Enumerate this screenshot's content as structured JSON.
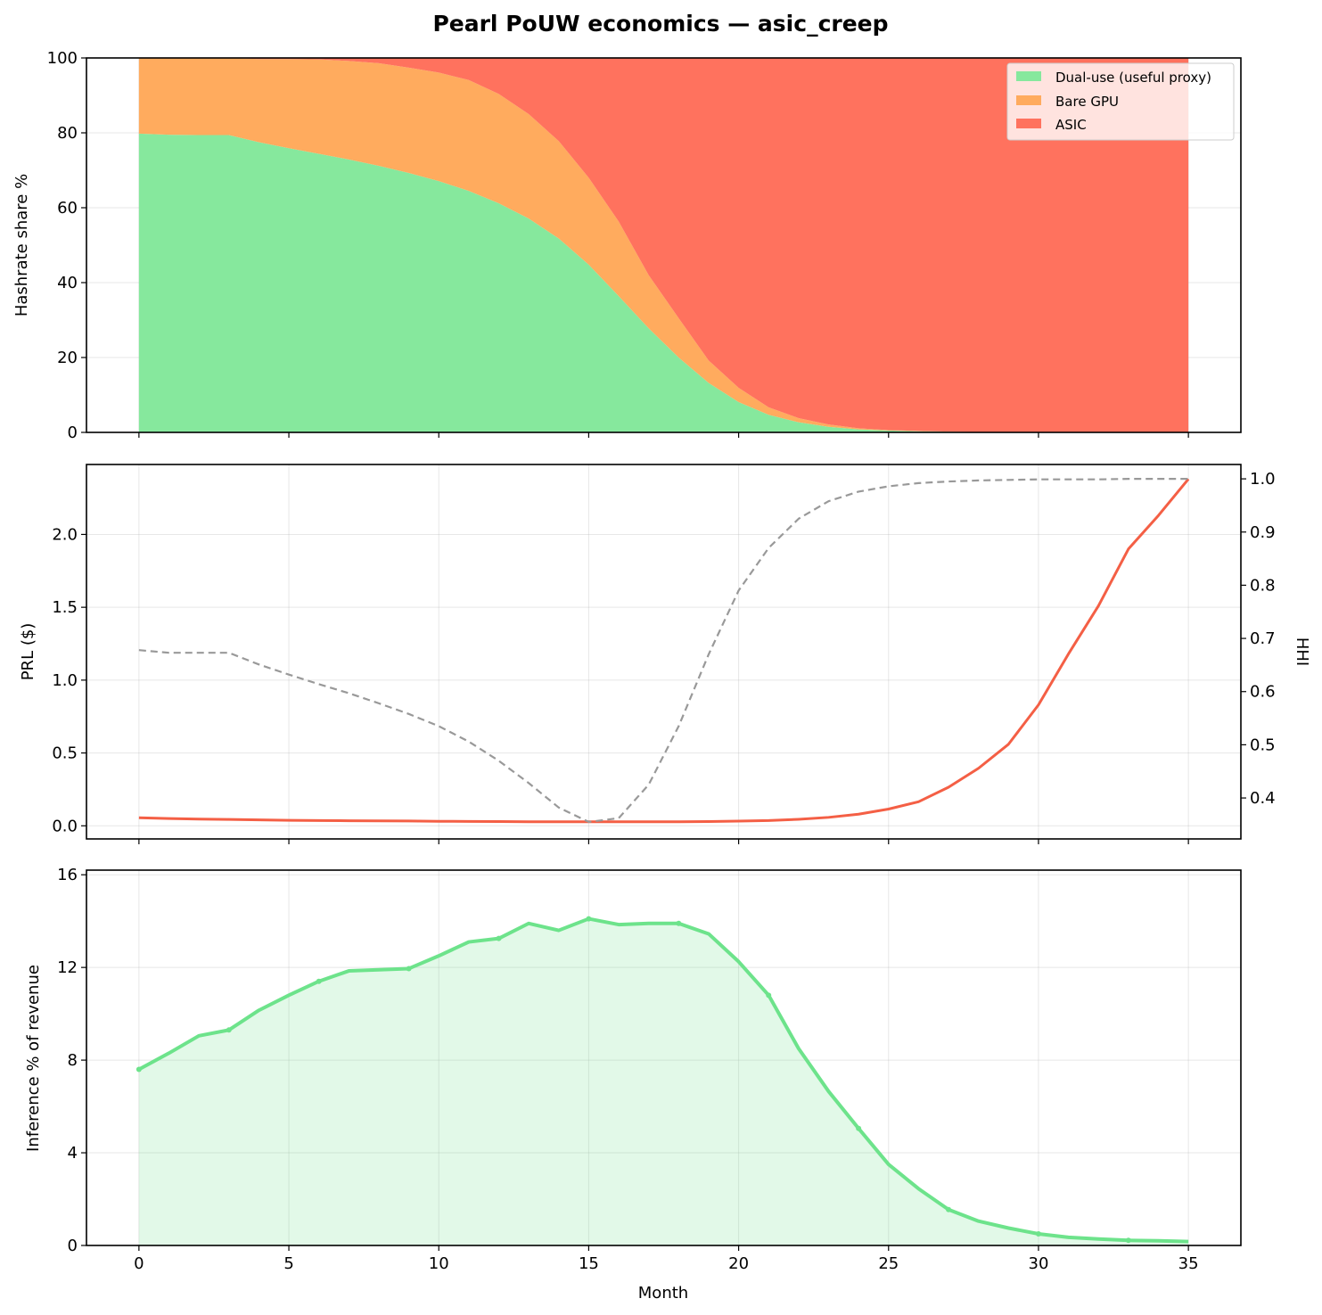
{
  "title": "Pearl PoUW economics — asic_creep",
  "chart_data": [
    {
      "type": "area",
      "stacked": true,
      "ylabel": "Hashrate share %",
      "xlabel": "",
      "xlim": [
        -1.75,
        36.75
      ],
      "ylim": [
        0,
        100
      ],
      "xticks": [
        0,
        5,
        10,
        15,
        20,
        25,
        30,
        35
      ],
      "yticks": [
        0,
        20,
        40,
        60,
        80,
        100
      ],
      "grid": true,
      "legend_position": "top-right",
      "x": [
        0,
        1,
        2,
        3,
        4,
        5,
        6,
        7,
        8,
        9,
        10,
        11,
        12,
        13,
        14,
        15,
        16,
        17,
        18,
        19,
        20,
        21,
        22,
        23,
        24,
        25,
        26,
        27,
        28,
        29,
        30,
        31,
        32,
        33,
        34,
        35
      ],
      "series": [
        {
          "name": "Dual-use (useful proxy)",
          "color": "#86e89d",
          "values": [
            79.8,
            79.5,
            79.4,
            79.4,
            77.5,
            75.9,
            74.4,
            72.9,
            71.2,
            69.3,
            67.1,
            64.5,
            61.2,
            57.1,
            51.8,
            44.8,
            36.4,
            27.8,
            20.0,
            13.2,
            8.1,
            4.7,
            2.7,
            1.5,
            0.8,
            0.5,
            0.3,
            0.2,
            0.1,
            0.1,
            0.0,
            0.0,
            0.0,
            0.0,
            0.0,
            0.0
          ]
        },
        {
          "name": "Bare GPU",
          "color": "#ffab5e",
          "values": [
            20.2,
            20.5,
            20.6,
            20.6,
            22.2,
            23.8,
            25.2,
            26.3,
            27.4,
            28.1,
            29.0,
            29.6,
            29.2,
            27.9,
            26.0,
            23.2,
            19.9,
            14.2,
            10.5,
            6.0,
            3.8,
            2.0,
            1.1,
            0.6,
            0.3,
            0.1,
            0.1,
            0.0,
            0.0,
            0.0,
            0.0,
            0.0,
            0.0,
            0.0,
            0.0,
            0.0
          ]
        },
        {
          "name": "ASIC",
          "color": "#ff725e",
          "values": [
            0.0,
            0.0,
            0.0,
            0.0,
            0.3,
            0.3,
            0.4,
            0.8,
            1.4,
            2.6,
            3.9,
            5.9,
            9.6,
            15.0,
            22.2,
            32.0,
            43.7,
            58.0,
            69.5,
            80.8,
            88.1,
            93.3,
            96.2,
            97.9,
            98.9,
            99.4,
            99.6,
            99.8,
            99.9,
            99.9,
            100.0,
            100.0,
            100.0,
            100.0,
            100.0,
            100.0
          ]
        }
      ]
    },
    {
      "type": "line",
      "ylabel": "PRL ($)",
      "y2label": "HHI",
      "xlabel": "",
      "xlim": [
        -1.75,
        36.75
      ],
      "ylim": [
        -0.09,
        2.48
      ],
      "y2lim": [
        0.323,
        1.027
      ],
      "xticks": [
        0,
        5,
        10,
        15,
        20,
        25,
        30,
        35
      ],
      "yticks": [
        0.0,
        0.5,
        1.0,
        1.5,
        2.0
      ],
      "yticklabels": [
        "0.0",
        "0.5",
        "1.0",
        "1.5",
        "2.0"
      ],
      "y2ticks": [
        0.4,
        0.5,
        0.6,
        0.7,
        0.8,
        0.9,
        1.0
      ],
      "y2ticklabels": [
        "0.4",
        "0.5",
        "0.6",
        "0.7",
        "0.8",
        "0.9",
        "1.0"
      ],
      "grid": true,
      "x": [
        0,
        1,
        2,
        3,
        4,
        5,
        6,
        7,
        8,
        9,
        10,
        11,
        12,
        13,
        14,
        15,
        16,
        17,
        18,
        19,
        20,
        21,
        22,
        23,
        24,
        25,
        26,
        27,
        28,
        29,
        30,
        31,
        32,
        33,
        34,
        35
      ],
      "series": [
        {
          "axis": "left",
          "color": "#f45f45",
          "style": "solid",
          "values": [
            0.055,
            0.05,
            0.046,
            0.044,
            0.041,
            0.038,
            0.036,
            0.035,
            0.034,
            0.033,
            0.031,
            0.03,
            0.029,
            0.028,
            0.028,
            0.028,
            0.028,
            0.028,
            0.028,
            0.029,
            0.032,
            0.036,
            0.045,
            0.058,
            0.08,
            0.115,
            0.165,
            0.265,
            0.395,
            0.56,
            0.83,
            1.18,
            1.51,
            1.9,
            2.13,
            2.38
          ]
        },
        {
          "axis": "right",
          "color": "#999999",
          "style": "dashed",
          "values": [
            0.678,
            0.673,
            0.673,
            0.673,
            0.651,
            0.632,
            0.614,
            0.597,
            0.578,
            0.558,
            0.535,
            0.506,
            0.47,
            0.428,
            0.382,
            0.355,
            0.362,
            0.425,
            0.535,
            0.67,
            0.79,
            0.87,
            0.925,
            0.958,
            0.976,
            0.986,
            0.992,
            0.995,
            0.997,
            0.998,
            0.999,
            0.999,
            0.999,
            1.0,
            1.0,
            1.0
          ]
        }
      ]
    },
    {
      "type": "area",
      "ylabel": "Inference % of revenue",
      "xlabel": "Month",
      "xlim": [
        -1.75,
        36.75
      ],
      "ylim": [
        0,
        16.2
      ],
      "xticks": [
        0,
        5,
        10,
        15,
        20,
        25,
        30,
        35
      ],
      "xticklabels": [
        "0",
        "5",
        "10",
        "15",
        "20",
        "25",
        "30",
        "35"
      ],
      "yticks": [
        0,
        4,
        8,
        12,
        16
      ],
      "grid": true,
      "x": [
        0,
        1,
        2,
        3,
        4,
        5,
        6,
        7,
        8,
        9,
        10,
        11,
        12,
        13,
        14,
        15,
        16,
        17,
        18,
        19,
        20,
        21,
        22,
        23,
        24,
        25,
        26,
        27,
        28,
        29,
        30,
        31,
        32,
        33,
        34,
        35
      ],
      "series": [
        {
          "color": "#6de38b",
          "values": [
            7.6,
            8.3,
            9.05,
            9.3,
            10.15,
            10.8,
            11.4,
            11.85,
            11.9,
            11.95,
            12.5,
            13.1,
            13.25,
            13.9,
            13.6,
            14.1,
            13.85,
            13.9,
            13.9,
            13.45,
            12.25,
            10.8,
            8.5,
            6.65,
            5.05,
            3.5,
            2.45,
            1.55,
            1.05,
            0.75,
            0.5,
            0.35,
            0.28,
            0.22,
            0.2,
            0.17
          ]
        }
      ]
    }
  ]
}
